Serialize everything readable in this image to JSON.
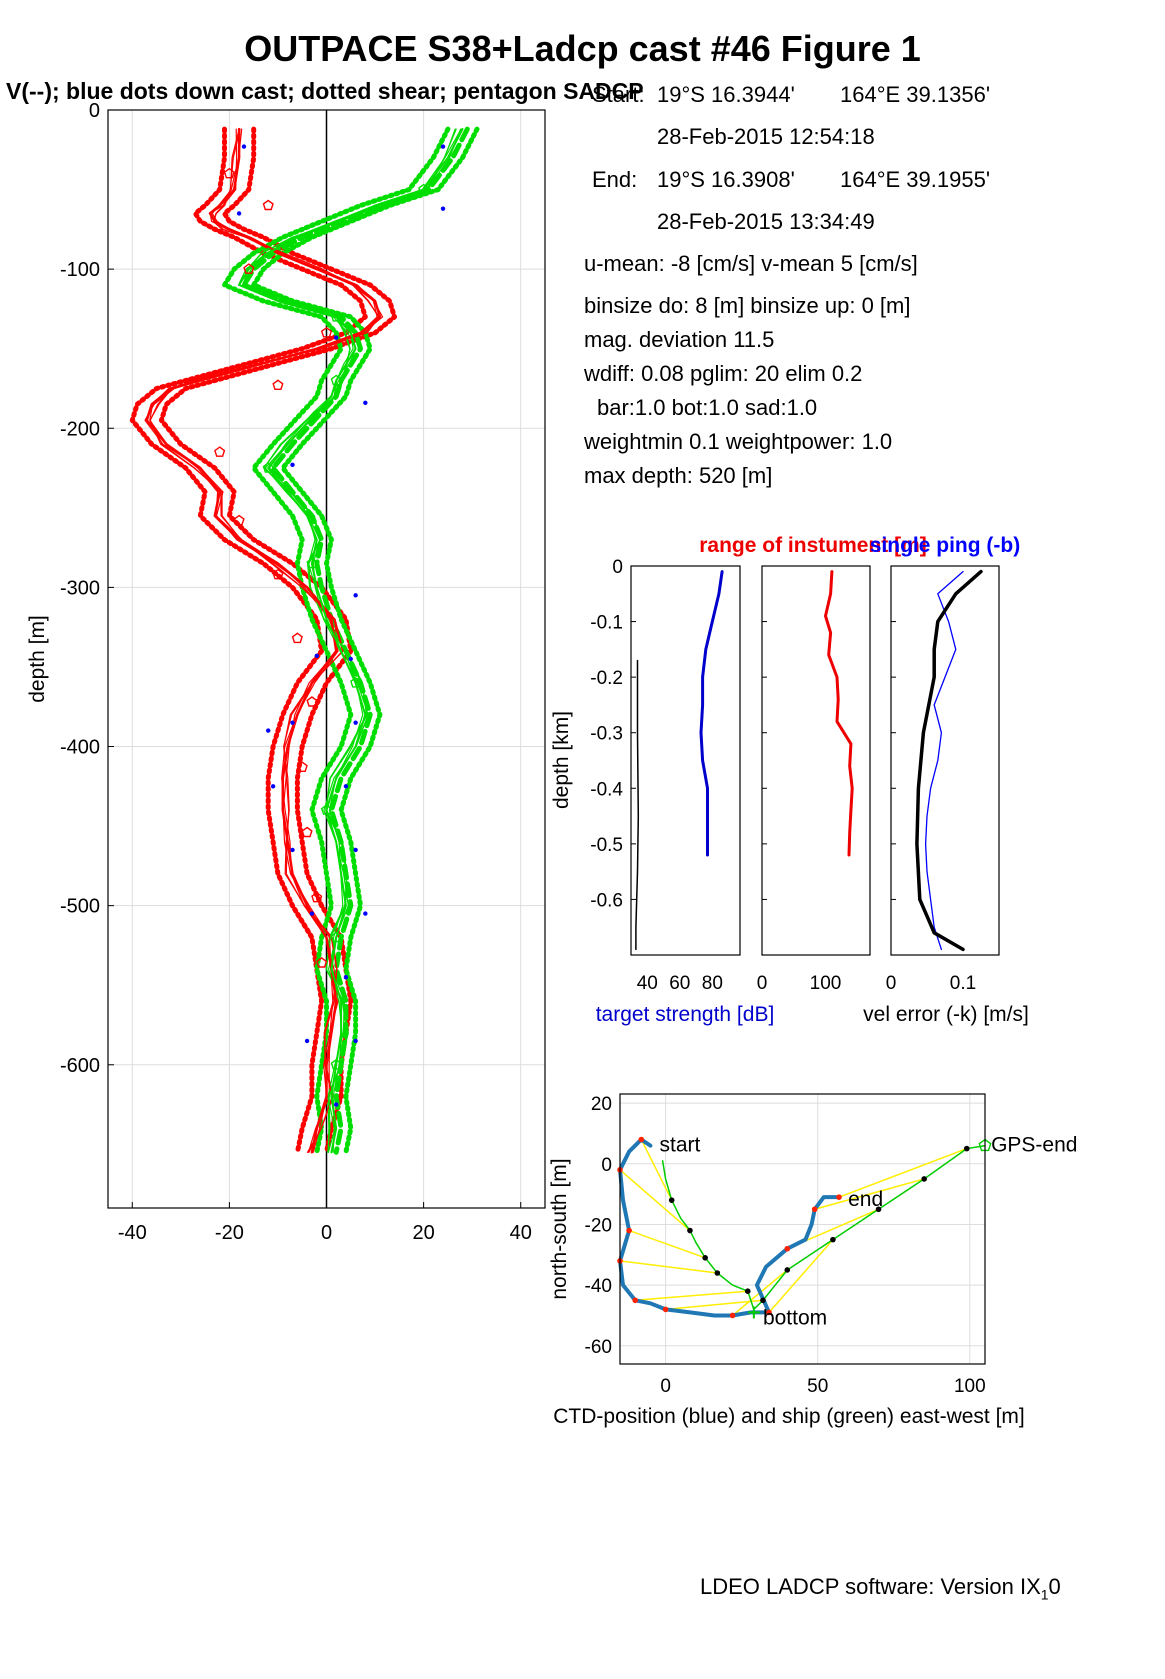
{
  "figure": {
    "title": "OUTPACE S38+Ladcp cast #46  Figure 1",
    "subtitle": "V(--); blue dots down cast; dotted shear; pentagon SADCP",
    "footer_main": "LDEO LADCP software: Version IX",
    "footer_sub": "1",
    "footer_end": "0"
  },
  "info": {
    "start_label": "Start:",
    "start_lat": "19°S 16.3944'",
    "start_lon": "164°E 39.1356'",
    "start_time": "28-Feb-2015 12:54:18",
    "end_label": "End:",
    "end_lat": "19°S 16.3908'",
    "end_lon": "164°E 39.1955'",
    "end_time": "28-Feb-2015 13:34:49",
    "umean": "u-mean:  -8 [cm/s]    v-mean   5 [cm/s]",
    "binsize": "binsize do: 8 [m]  binsize up:  0 [m]",
    "magdev": "mag. deviation 11.5",
    "wdiff": "wdiff: 0.08  pglim: 20  elim 0.2",
    "bar": "bar:1.0 bot:1.0 sad:1.0",
    "weight": "weightmin 0.1  weightpower: 1.0",
    "maxdepth": "max depth: 520 [m]"
  },
  "colors": {
    "u": "#ff0000",
    "v": "#00dd00",
    "down": "#0000ff",
    "ts": "#0000cc",
    "range": "#ee0000",
    "err": "#000000",
    "single": "#0000ff",
    "ctd": "#1f77b4",
    "ship": "#00cc00",
    "link": "#ffee00"
  },
  "chart_data": [
    {
      "type": "line",
      "title": "",
      "xlabel": "",
      "ylabel": "depth [m]",
      "xlim": [
        -45,
        45
      ],
      "ylim": [
        -690,
        0
      ],
      "xticks": [
        "-40",
        "-20",
        "0",
        "20",
        "40"
      ],
      "yticks": [
        "0",
        "-100",
        "-200",
        "-300",
        "-400",
        "-500",
        "-600"
      ],
      "grid": true,
      "series": [
        {
          "role": "u",
          "style": "solid",
          "y": [
            -12,
            -30,
            -50,
            -60,
            -65,
            -70,
            -75,
            -80,
            -90,
            -100,
            -110,
            -120,
            -130,
            -140,
            -150,
            -160,
            -170,
            -175,
            -185,
            -195,
            -210,
            -225,
            -240,
            -255,
            -270,
            -285,
            -300,
            -320,
            -340,
            -360,
            -380,
            -400,
            -420,
            -440,
            -460,
            -480,
            -500,
            -520,
            -540,
            -560,
            -580,
            -600,
            -620,
            -640,
            -655
          ],
          "x": [
            -18,
            -18,
            -19,
            -22,
            -24,
            -23,
            -20,
            -16,
            -10,
            -2,
            6,
            10,
            11,
            7,
            -2,
            -14,
            -26,
            -32,
            -36,
            -37,
            -33,
            -26,
            -22,
            -23,
            -18,
            -10,
            -4,
            1,
            2,
            -3,
            -6,
            -8,
            -9,
            -9,
            -8,
            -7,
            -4,
            0,
            1,
            2,
            1,
            0,
            0,
            -2,
            -3
          ]
        },
        {
          "role": "v",
          "style": "solid",
          "y": [
            -12,
            -30,
            -50,
            -60,
            -70,
            -80,
            -90,
            -100,
            -110,
            -120,
            -130,
            -140,
            -150,
            -160,
            -170,
            -180,
            -190,
            -210,
            -225,
            -240,
            -255,
            -270,
            -285,
            -300,
            -320,
            -340,
            -360,
            -380,
            -400,
            -420,
            -440,
            -460,
            -480,
            -500,
            -520,
            -540,
            -560,
            -580,
            -600,
            -620,
            -640,
            -655
          ],
          "x": [
            28,
            25,
            20,
            10,
            2,
            -6,
            -12,
            -16,
            -18,
            -10,
            2,
            5,
            6,
            4,
            2,
            1,
            -2,
            -8,
            -12,
            -8,
            -4,
            -2,
            -3,
            -2,
            0,
            3,
            6,
            8,
            6,
            2,
            0,
            2,
            3,
            4,
            2,
            1,
            3,
            3,
            2,
            1,
            2,
            1
          ]
        },
        {
          "role": "down",
          "style": "dots",
          "points": [
            [
              -17,
              -23
            ],
            [
              -18,
              -65
            ],
            [
              24,
              -23
            ],
            [
              24,
              -62
            ],
            [
              2,
              -143
            ],
            [
              8,
              -184
            ],
            [
              -7,
              -223
            ],
            [
              6,
              -305
            ],
            [
              -2,
              -343
            ],
            [
              5,
              -345
            ],
            [
              6,
              -385
            ],
            [
              -7,
              -385
            ],
            [
              -12,
              -390
            ],
            [
              4,
              -425
            ],
            [
              -11,
              -425
            ],
            [
              6,
              -465
            ],
            [
              -7,
              -465
            ],
            [
              -3,
              -505
            ],
            [
              8,
              -505
            ],
            [
              4,
              -545
            ],
            [
              -4,
              -585
            ],
            [
              6,
              -585
            ],
            [
              2,
              -625
            ]
          ]
        },
        {
          "role": "sadcp",
          "style": "pentagon",
          "points": [
            [
              -20,
              -40
            ],
            [
              -12,
              -60
            ],
            [
              -16,
              -100
            ],
            [
              0,
              -140
            ],
            [
              -10,
              -173
            ],
            [
              -22,
              -215
            ],
            [
              -18,
              -258
            ],
            [
              -10,
              -292
            ],
            [
              -6,
              -332
            ],
            [
              -3,
              -372
            ],
            [
              -5,
              -413
            ],
            [
              -4,
              -454
            ],
            [
              -2,
              -495
            ],
            [
              -1,
              -536
            ]
          ]
        }
      ]
    },
    {
      "type": "line",
      "title": "range of instument [m]",
      "xlabel": "target strength [dB]",
      "ylabel": "depth [km]",
      "xlim": [
        30,
        97
      ],
      "ylim": [
        -0.7,
        0
      ],
      "xticks": [
        "40",
        "60",
        "80"
      ],
      "yticks": [
        "0",
        "-0.1",
        "-0.2",
        "-0.3",
        "-0.4",
        "-0.5",
        "-0.6"
      ],
      "series": [
        {
          "role": "target_strength",
          "y": [
            -0.01,
            -0.05,
            -0.1,
            -0.15,
            -0.2,
            -0.25,
            -0.3,
            -0.35,
            -0.4,
            -0.45,
            -0.52
          ],
          "x": [
            86,
            84,
            80,
            76,
            74,
            74,
            73,
            74,
            77,
            77,
            77
          ]
        },
        {
          "role": "range_instrument",
          "y": [
            -0.17,
            -0.3,
            -0.45,
            -0.55,
            -0.65,
            -0.69
          ],
          "x": [
            34,
            34,
            34.5,
            34,
            33,
            33
          ]
        }
      ]
    },
    {
      "type": "line",
      "title": "range of instument [m]",
      "xlabel": "",
      "ylabel": "",
      "xlim": [
        0,
        170
      ],
      "ylim": [
        -0.7,
        0
      ],
      "xticks": [
        "0",
        "100"
      ],
      "series": [
        {
          "role": "range",
          "y": [
            -0.01,
            -0.05,
            -0.09,
            -0.12,
            -0.16,
            -0.2,
            -0.24,
            -0.28,
            -0.32,
            -0.36,
            -0.4,
            -0.44,
            -0.48,
            -0.52
          ],
          "x": [
            110,
            108,
            100,
            108,
            105,
            118,
            120,
            118,
            140,
            138,
            142,
            140,
            138,
            137
          ]
        }
      ]
    },
    {
      "type": "line",
      "title": "single ping (-b)",
      "xlabel": "vel error (-k) [m/s]",
      "ylabel": "",
      "xlim": [
        0,
        0.15
      ],
      "ylim": [
        -0.7,
        0
      ],
      "xticks": [
        "0",
        "0.1"
      ],
      "series": [
        {
          "role": "vel_error",
          "y": [
            -0.01,
            -0.05,
            -0.1,
            -0.15,
            -0.2,
            -0.3,
            -0.4,
            -0.5,
            -0.6,
            -0.63,
            -0.66,
            -0.69
          ],
          "x": [
            0.125,
            0.09,
            0.065,
            0.06,
            0.06,
            0.045,
            0.038,
            0.036,
            0.04,
            0.05,
            0.06,
            0.1
          ]
        },
        {
          "role": "single_ping",
          "y": [
            -0.01,
            -0.05,
            -0.1,
            -0.15,
            -0.2,
            -0.25,
            -0.3,
            -0.35,
            -0.4,
            -0.45,
            -0.5,
            -0.55,
            -0.6,
            -0.65,
            -0.69
          ],
          "x": [
            0.1,
            0.065,
            0.08,
            0.09,
            0.075,
            0.06,
            0.07,
            0.065,
            0.055,
            0.05,
            0.048,
            0.05,
            0.055,
            0.06,
            0.07
          ]
        }
      ]
    },
    {
      "type": "line",
      "title": "",
      "xlabel": "CTD-position (blue) and ship (green) east-west [m]",
      "ylabel": "north-south [m]",
      "xlim": [
        -15,
        105
      ],
      "ylim": [
        -66,
        23
      ],
      "xticks": [
        "0",
        "50",
        "100"
      ],
      "yticks": [
        "20",
        "0",
        "-20",
        "-40",
        "-60"
      ],
      "grid": true,
      "annotations": [
        "start",
        "end",
        "bottom",
        "GPS-end"
      ],
      "series": [
        {
          "role": "ctd",
          "x": [
            -5,
            -8,
            -12,
            -15,
            -14,
            -12,
            -15,
            -14,
            -10,
            -5,
            0,
            8,
            16,
            22,
            28,
            34,
            30,
            33,
            40,
            46,
            48,
            49,
            52,
            57
          ],
          "y": [
            6,
            8,
            4,
            -2,
            -12,
            -22,
            -32,
            -40,
            -45,
            -46,
            -48,
            -49,
            -50,
            -50,
            -49,
            -49,
            -40,
            -34,
            -28,
            -25,
            -20,
            -15,
            -11,
            -11
          ]
        },
        {
          "role": "ship",
          "x": [
            -1,
            0,
            2,
            5,
            8,
            10,
            13,
            17,
            22,
            27,
            29,
            32,
            40,
            55,
            70,
            85,
            99,
            105
          ],
          "y": [
            1,
            -5,
            -12,
            -18,
            -22,
            -26,
            -31,
            -36,
            -40,
            -42,
            -48,
            -45,
            -35,
            -25,
            -15,
            -5,
            5,
            6
          ]
        }
      ]
    }
  ]
}
